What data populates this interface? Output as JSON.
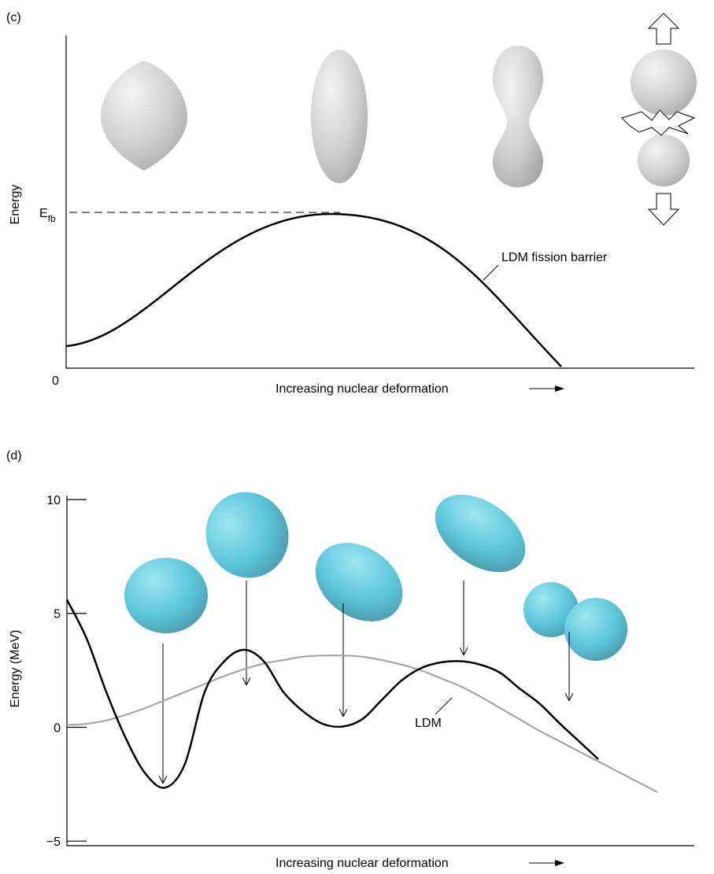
{
  "panel_c": {
    "panel_label": "(c)",
    "y_label": "Energy",
    "origin_label": "0",
    "barrier_label": "E",
    "barrier_label_sub": "fb",
    "curve_label": "LDM fission barrier",
    "x_label": "Increasing nuclear deformation"
  },
  "chart_data": {
    "type": "line",
    "panel_label": "(d)",
    "y_label": "Energy (MeV)",
    "x_label": "Increasing nuclear deformation",
    "annotation": "LDM",
    "categories": [
      null,
      null,
      null,
      null,
      null,
      null,
      null,
      null,
      null,
      null,
      null,
      null,
      null,
      null,
      null,
      null,
      null,
      null,
      null,
      null,
      null,
      null,
      null,
      null,
      null,
      null,
      null,
      null,
      null,
      null,
      null
    ],
    "series": [
      {
        "color": "#000000",
        "values": [
          5.6,
          3.9,
          1.55,
          -0.5,
          -2.05,
          -2.65,
          -1.6,
          1.55,
          2.9,
          3.4,
          2.9,
          1.55,
          0.7,
          0.15,
          0.03,
          0.35,
          1.2,
          2.05,
          2.6,
          2.85,
          2.9,
          2.75,
          2.4,
          1.7,
          1.05,
          0.2,
          -0.6,
          -1.4,
          null,
          null,
          null
        ]
      },
      {
        "color": "#a6a6a6",
        "values": [
          0.1,
          0.15,
          0.3,
          0.55,
          0.85,
          1.2,
          1.55,
          1.9,
          2.25,
          2.55,
          2.8,
          2.95,
          3.1,
          3.15,
          3.15,
          3.1,
          2.95,
          2.75,
          2.5,
          2.15,
          1.8,
          1.35,
          0.85,
          0.35,
          -0.15,
          -0.6,
          -1.05,
          -1.5,
          -1.95,
          -2.4,
          -2.85
        ]
      }
    ],
    "ylim": [
      -5.2,
      10
    ],
    "yticks": [
      {
        "value": -5,
        "label": "−5"
      },
      0,
      5,
      10
    ]
  }
}
